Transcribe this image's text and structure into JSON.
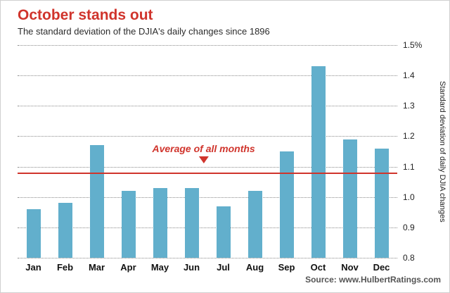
{
  "title": "October stands out",
  "subtitle": "The standard deviation of the DJIA's daily changes since 1896",
  "source": "Source: www.HulbertRatings.com",
  "axis_right_label": "Standard deviation of daily DJIA changes",
  "annotation": {
    "label": "Average of all months"
  },
  "colors": {
    "title": "#d0342c",
    "accent": "#d0342c",
    "bar": "#62afcc",
    "grid": "#8a8a8a"
  },
  "chart_data": {
    "type": "bar",
    "title": "October stands out",
    "subtitle": "The standard deviation of the DJIA's daily changes since 1896",
    "categories": [
      "Jan",
      "Feb",
      "Mar",
      "Apr",
      "May",
      "Jun",
      "Jul",
      "Aug",
      "Sep",
      "Oct",
      "Nov",
      "Dec"
    ],
    "values": [
      0.96,
      0.98,
      1.17,
      1.02,
      1.03,
      1.03,
      0.97,
      1.02,
      1.15,
      1.43,
      1.19,
      1.16
    ],
    "average": 1.08,
    "average_label": "Average of all months",
    "xlabel": "",
    "ylabel": "Standard deviation of daily DJIA changes",
    "ylim": [
      0.8,
      1.5
    ],
    "yticks": [
      0.8,
      0.9,
      1.0,
      1.1,
      1.2,
      1.3,
      1.4,
      1.5
    ],
    "ytick_labels": [
      "0.8",
      "0.9",
      "1.0",
      "1.1",
      "1.2",
      "1.3",
      "1.4",
      "1.5%"
    ],
    "grid": "dotted-horizontal",
    "legend": "none"
  }
}
